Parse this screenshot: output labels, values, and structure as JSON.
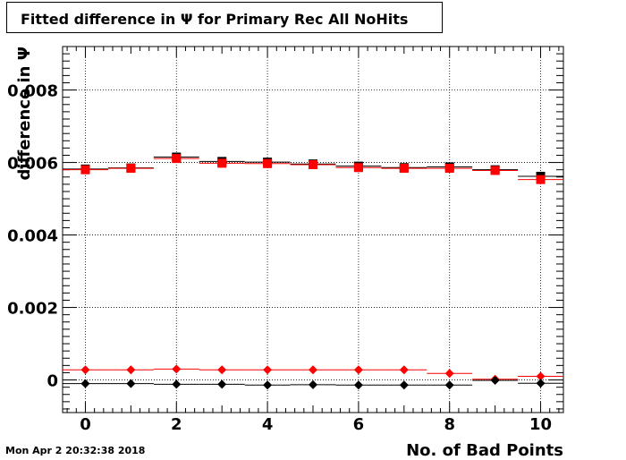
{
  "title": "Fitted difference in  Ψ  for Primary Rec All NoHits",
  "timestamp": "Mon Apr  2 20:32:38 2018",
  "chart_data": {
    "type": "scatter",
    "title": "Fitted difference in  Ψ  for Primary Rec All NoHits",
    "xlabel": "No. of Bad Points",
    "ylabel": "difference in  Ψ",
    "xlim": [
      -0.5,
      10.5
    ],
    "ylim": [
      -0.0009,
      0.0092
    ],
    "grid": true,
    "x_ticks": [
      0,
      2,
      4,
      6,
      8,
      10
    ],
    "y_ticks": [
      0,
      0.002,
      0.004,
      0.006,
      0.008
    ],
    "y_tick_labels": [
      "0",
      "0.002",
      "0.004",
      "0.006",
      "0.008"
    ],
    "x": [
      0,
      1,
      2,
      3,
      4,
      5,
      6,
      7,
      8,
      9,
      10
    ],
    "series": [
      {
        "marker": "square",
        "color": "#000000",
        "values": [
          0.00582,
          0.00585,
          0.00615,
          0.00603,
          0.00601,
          0.00596,
          0.0059,
          0.00586,
          0.00588,
          0.0058,
          0.00562
        ]
      },
      {
        "marker": "square",
        "color": "#ff0000",
        "values": [
          0.0058,
          0.00584,
          0.00611,
          0.00598,
          0.00597,
          0.00594,
          0.00586,
          0.00584,
          0.00584,
          0.00578,
          0.00553
        ]
      },
      {
        "marker": "diamond",
        "color": "#ff0000",
        "values": [
          0.00028,
          0.00028,
          0.0003,
          0.00028,
          0.00028,
          0.00028,
          0.00028,
          0.00028,
          0.00018,
          2e-05,
          0.0001
        ]
      },
      {
        "marker": "diamond",
        "color": "#000000",
        "values": [
          -0.0001,
          -0.0001,
          -0.00012,
          -0.00012,
          -0.00014,
          -0.00013,
          -0.00014,
          -0.00014,
          -0.00014,
          -1e-05,
          -9e-05
        ]
      }
    ]
  }
}
